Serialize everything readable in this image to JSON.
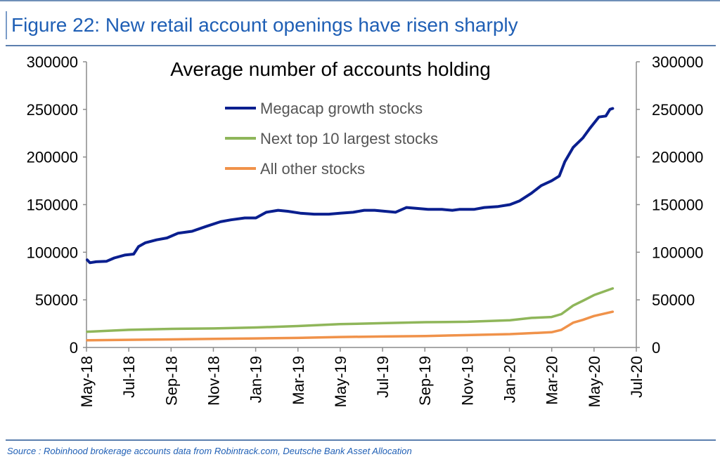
{
  "figure_title": "Figure 22: New retail account openings have risen sharply",
  "source_note": "Source : Robinhood brokerage accounts data from Robintrack.com, Deutsche Bank Asset Allocation",
  "chart_data": {
    "type": "line",
    "title": "Average number of accounts holding",
    "xlabel": "",
    "ylabel": "",
    "y2label": "",
    "x_ticks": [
      "May-18",
      "Jul-18",
      "Sep-18",
      "Nov-18",
      "Jan-19",
      "Mar-19",
      "May-19",
      "Jul-19",
      "Sep-19",
      "Nov-19",
      "Jan-20",
      "Mar-20",
      "May-20",
      "Jul-20"
    ],
    "x_range": [
      "2018-05-01",
      "2020-07-01"
    ],
    "ylim": [
      0,
      300000
    ],
    "y_ticks": [
      "0",
      "50000",
      "100000",
      "150000",
      "200000",
      "250000",
      "300000"
    ],
    "y2_ticks": [
      "0",
      "50000",
      "100000",
      "150000",
      "200000",
      "250000",
      "300000"
    ],
    "grid": false,
    "legend_position": "top-center",
    "series": [
      {
        "name": "Megacap growth stocks",
        "color": "#0a1f8f",
        "points": [
          [
            "2018-05-02",
            92000
          ],
          [
            "2018-05-06",
            89000
          ],
          [
            "2018-05-15",
            90000
          ],
          [
            "2018-05-30",
            90500
          ],
          [
            "2018-06-10",
            94000
          ],
          [
            "2018-06-25",
            97000
          ],
          [
            "2018-07-08",
            98000
          ],
          [
            "2018-07-15",
            106000
          ],
          [
            "2018-07-25",
            110000
          ],
          [
            "2018-08-10",
            113000
          ],
          [
            "2018-08-25",
            115000
          ],
          [
            "2018-09-10",
            120000
          ],
          [
            "2018-09-30",
            122000
          ],
          [
            "2018-10-20",
            127000
          ],
          [
            "2018-11-10",
            132000
          ],
          [
            "2018-11-25",
            134000
          ],
          [
            "2018-12-15",
            136000
          ],
          [
            "2018-12-31",
            136000
          ],
          [
            "2019-01-15",
            142000
          ],
          [
            "2019-02-01",
            144000
          ],
          [
            "2019-02-15",
            143000
          ],
          [
            "2019-03-05",
            141000
          ],
          [
            "2019-03-25",
            140000
          ],
          [
            "2019-04-15",
            140000
          ],
          [
            "2019-05-01",
            141000
          ],
          [
            "2019-05-20",
            142000
          ],
          [
            "2019-06-05",
            144000
          ],
          [
            "2019-06-20",
            144000
          ],
          [
            "2019-07-05",
            143000
          ],
          [
            "2019-07-20",
            142000
          ],
          [
            "2019-08-05",
            147000
          ],
          [
            "2019-08-20",
            146000
          ],
          [
            "2019-09-05",
            145000
          ],
          [
            "2019-09-25",
            145000
          ],
          [
            "2019-10-10",
            144000
          ],
          [
            "2019-10-20",
            145000
          ],
          [
            "2019-11-10",
            145000
          ],
          [
            "2019-11-25",
            147000
          ],
          [
            "2019-12-15",
            148000
          ],
          [
            "2020-01-01",
            150000
          ],
          [
            "2020-01-15",
            154000
          ],
          [
            "2020-02-01",
            162000
          ],
          [
            "2020-02-15",
            170000
          ],
          [
            "2020-03-01",
            175000
          ],
          [
            "2020-03-12",
            180000
          ],
          [
            "2020-03-20",
            195000
          ],
          [
            "2020-04-01",
            210000
          ],
          [
            "2020-04-15",
            220000
          ],
          [
            "2020-04-25",
            230000
          ],
          [
            "2020-05-08",
            242000
          ],
          [
            "2020-05-18",
            243000
          ],
          [
            "2020-05-24",
            250000
          ],
          [
            "2020-05-28",
            251000
          ]
        ]
      },
      {
        "name": "Next top 10 largest stocks",
        "color": "#8fb65a",
        "points": [
          [
            "2018-05-02",
            16500
          ],
          [
            "2018-06-01",
            17500
          ],
          [
            "2018-07-01",
            18500
          ],
          [
            "2018-09-01",
            19500
          ],
          [
            "2018-11-01",
            20000
          ],
          [
            "2019-01-01",
            21000
          ],
          [
            "2019-03-01",
            22500
          ],
          [
            "2019-05-01",
            24500
          ],
          [
            "2019-07-01",
            25500
          ],
          [
            "2019-09-01",
            26500
          ],
          [
            "2019-11-01",
            27000
          ],
          [
            "2020-01-01",
            28500
          ],
          [
            "2020-02-01",
            31000
          ],
          [
            "2020-03-01",
            32000
          ],
          [
            "2020-03-15",
            35000
          ],
          [
            "2020-04-01",
            44000
          ],
          [
            "2020-04-15",
            49000
          ],
          [
            "2020-05-01",
            55000
          ],
          [
            "2020-05-28",
            62000
          ]
        ]
      },
      {
        "name": "All other stocks",
        "color": "#f0924a",
        "points": [
          [
            "2018-05-02",
            7500
          ],
          [
            "2018-07-01",
            8000
          ],
          [
            "2018-09-01",
            8500
          ],
          [
            "2018-11-01",
            9000
          ],
          [
            "2019-01-01",
            9500
          ],
          [
            "2019-03-01",
            10000
          ],
          [
            "2019-05-01",
            11000
          ],
          [
            "2019-07-01",
            11500
          ],
          [
            "2019-09-01",
            12000
          ],
          [
            "2019-11-01",
            13000
          ],
          [
            "2020-01-01",
            14000
          ],
          [
            "2020-03-01",
            16000
          ],
          [
            "2020-03-15",
            18500
          ],
          [
            "2020-04-01",
            26000
          ],
          [
            "2020-04-15",
            29000
          ],
          [
            "2020-05-01",
            33000
          ],
          [
            "2020-05-28",
            37500
          ]
        ]
      }
    ]
  }
}
